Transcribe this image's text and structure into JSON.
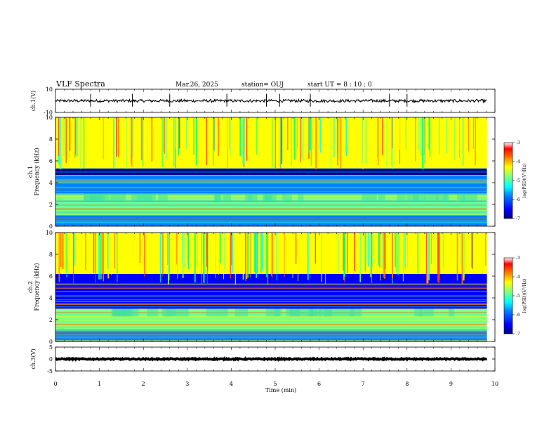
{
  "header": {
    "title": "VLF Spectra",
    "date": "Mar.26, 2025",
    "station": "station= OUJ",
    "start_ut": "start  UT =   8 : 10 : 0"
  },
  "colors": {
    "spectrum_cmap": [
      "#000080",
      "#0000ff",
      "#0080ff",
      "#00ffff",
      "#80ff80",
      "#ffff00",
      "#ff8000",
      "#ff0000",
      "#e8e8e8"
    ]
  },
  "chart_data": [
    {
      "type": "line",
      "panel": "ch1-waveform",
      "ylabel": "ch.1(V)",
      "ylim": [
        -10,
        10
      ],
      "yticks": [
        10,
        -10
      ],
      "xlim": [
        0,
        10
      ],
      "baseline": 0.0,
      "noise_amplitude": 1.2,
      "spike_times_min": [
        0.8,
        1.75,
        2.6,
        3.9,
        4.8,
        5.1,
        5.8,
        7.6,
        8.0
      ]
    },
    {
      "type": "heatmap",
      "panel": "ch1-spectrogram",
      "ylabel": "ch.1\nFrequency (kHz)",
      "ylim": [
        0,
        10
      ],
      "yticks": [
        0,
        2,
        4,
        6,
        8,
        10
      ],
      "xlim": [
        0,
        10
      ],
      "data_end_min": 9.82,
      "colorbar": {
        "label": "log(PSD)(V²/Hz)",
        "ticks": [
          -3,
          -4,
          -5,
          -6,
          -7
        ],
        "range": [
          -7,
          -3
        ]
      },
      "bands_khz": [
        {
          "from": 0.0,
          "to": 1.0,
          "level": -5.6
        },
        {
          "from": 1.0,
          "to": 2.2,
          "level": -5.0
        },
        {
          "from": 2.2,
          "to": 3.0,
          "level": -4.7
        },
        {
          "from": 3.0,
          "to": 4.7,
          "level": -6.0
        },
        {
          "from": 4.7,
          "to": 5.3,
          "level": -6.6
        },
        {
          "from": 5.3,
          "to": 10.0,
          "level": -4.4
        }
      ]
    },
    {
      "type": "heatmap",
      "panel": "ch2-spectrogram",
      "ylabel": "ch.2\nFrequency (kHz)",
      "ylim": [
        0,
        10
      ],
      "yticks": [
        0,
        2,
        4,
        6,
        8,
        10
      ],
      "xlim": [
        0,
        10
      ],
      "data_end_min": 9.82,
      "colorbar": {
        "label": "log(PSD)(V²/Hz)",
        "ticks": [
          -3,
          -4,
          -5,
          -6,
          -7
        ],
        "range": [
          -7,
          -3
        ]
      },
      "bands_khz": [
        {
          "from": 0.0,
          "to": 1.0,
          "level": -5.6
        },
        {
          "from": 1.0,
          "to": 2.2,
          "level": -5.0
        },
        {
          "from": 2.2,
          "to": 3.0,
          "level": -4.7
        },
        {
          "from": 3.0,
          "to": 5.0,
          "level": -6.1
        },
        {
          "from": 5.0,
          "to": 6.2,
          "level": -6.2
        },
        {
          "from": 6.2,
          "to": 10.0,
          "level": -4.5
        }
      ]
    },
    {
      "type": "line",
      "panel": "ch3-waveform",
      "ylabel": "ch.3(V)",
      "ylim": [
        -5,
        5
      ],
      "yticks": [
        5,
        0,
        -5
      ],
      "xlim": [
        0,
        10
      ],
      "baseline": 0.0,
      "noise_amplitude": 0.25,
      "spike_times_min": []
    }
  ],
  "xaxis": {
    "label": "Time (min)",
    "ticks": [
      0,
      1,
      2,
      3,
      4,
      5,
      6,
      7,
      8,
      9,
      10
    ]
  }
}
